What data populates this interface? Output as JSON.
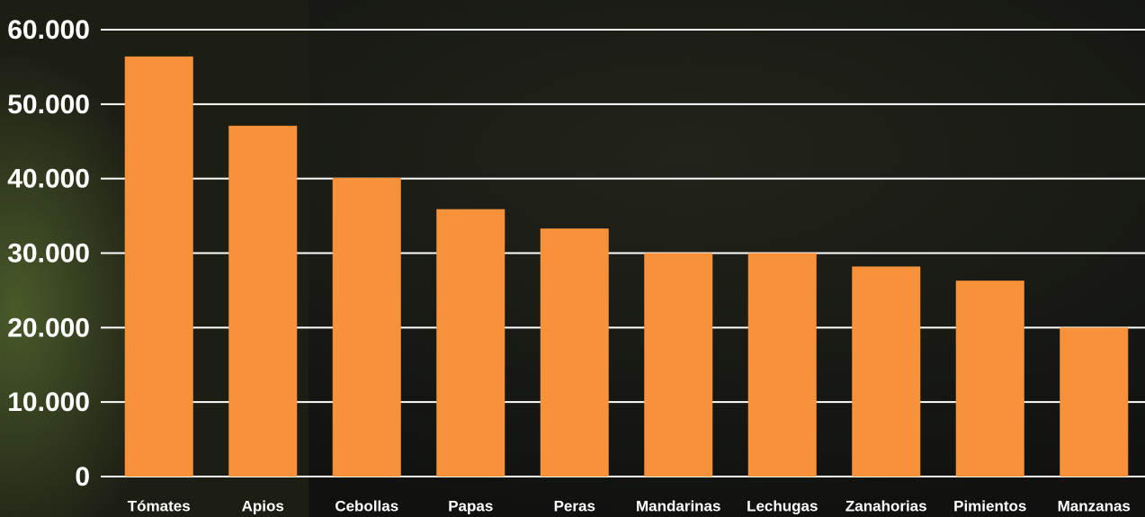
{
  "chart_data": {
    "type": "bar",
    "categories": [
      "Tómates",
      "Apios",
      "Cebollas",
      "Papas",
      "Peras",
      "Mandarinas",
      "Lechugas",
      "Zanahorias",
      "Pimientos",
      "Manzanas"
    ],
    "values": [
      56400,
      47100,
      40100,
      35900,
      33300,
      30000,
      30000,
      28200,
      26300,
      20000
    ],
    "color": "#f7923a",
    "ylim": [
      0,
      60000
    ],
    "yticks": [
      0,
      {
        "value": 10000,
        "label": "10.000"
      },
      {
        "value": 20000,
        "label": "20.000"
      },
      {
        "value": 30000,
        "label": "30.000"
      },
      {
        "value": 40000,
        "label": "40.000"
      },
      {
        "value": 50000,
        "label": "50.000"
      },
      {
        "value": 60000,
        "label": "60.000"
      }
    ],
    "grid": true
  }
}
